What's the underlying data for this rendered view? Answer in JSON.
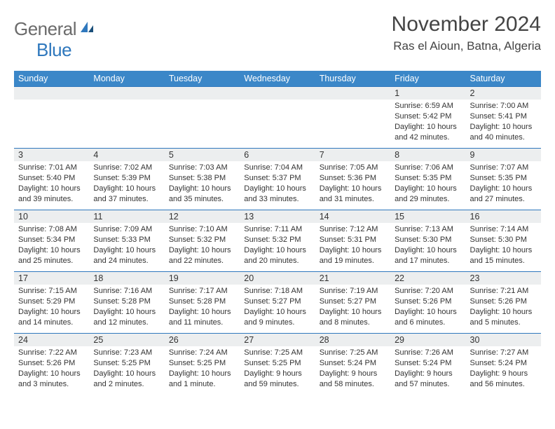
{
  "logo": {
    "text1": "General",
    "text2": "Blue"
  },
  "title": "November 2024",
  "location": "Ras el Aioun, Batna, Algeria",
  "day_headers": [
    "Sunday",
    "Monday",
    "Tuesday",
    "Wednesday",
    "Thursday",
    "Friday",
    "Saturday"
  ],
  "colors": {
    "header_bg": "#3b87c8",
    "border": "#2f78bd",
    "daynum_bg": "#eceeef",
    "logo_gray": "#6b6b6b",
    "logo_blue": "#2f78bd"
  },
  "weeks": [
    [
      {
        "n": "",
        "sunrise": "",
        "sunset": "",
        "daylight": ""
      },
      {
        "n": "",
        "sunrise": "",
        "sunset": "",
        "daylight": ""
      },
      {
        "n": "",
        "sunrise": "",
        "sunset": "",
        "daylight": ""
      },
      {
        "n": "",
        "sunrise": "",
        "sunset": "",
        "daylight": ""
      },
      {
        "n": "",
        "sunrise": "",
        "sunset": "",
        "daylight": ""
      },
      {
        "n": "1",
        "sunrise": "Sunrise: 6:59 AM",
        "sunset": "Sunset: 5:42 PM",
        "daylight": "Daylight: 10 hours and 42 minutes."
      },
      {
        "n": "2",
        "sunrise": "Sunrise: 7:00 AM",
        "sunset": "Sunset: 5:41 PM",
        "daylight": "Daylight: 10 hours and 40 minutes."
      }
    ],
    [
      {
        "n": "3",
        "sunrise": "Sunrise: 7:01 AM",
        "sunset": "Sunset: 5:40 PM",
        "daylight": "Daylight: 10 hours and 39 minutes."
      },
      {
        "n": "4",
        "sunrise": "Sunrise: 7:02 AM",
        "sunset": "Sunset: 5:39 PM",
        "daylight": "Daylight: 10 hours and 37 minutes."
      },
      {
        "n": "5",
        "sunrise": "Sunrise: 7:03 AM",
        "sunset": "Sunset: 5:38 PM",
        "daylight": "Daylight: 10 hours and 35 minutes."
      },
      {
        "n": "6",
        "sunrise": "Sunrise: 7:04 AM",
        "sunset": "Sunset: 5:37 PM",
        "daylight": "Daylight: 10 hours and 33 minutes."
      },
      {
        "n": "7",
        "sunrise": "Sunrise: 7:05 AM",
        "sunset": "Sunset: 5:36 PM",
        "daylight": "Daylight: 10 hours and 31 minutes."
      },
      {
        "n": "8",
        "sunrise": "Sunrise: 7:06 AM",
        "sunset": "Sunset: 5:35 PM",
        "daylight": "Daylight: 10 hours and 29 minutes."
      },
      {
        "n": "9",
        "sunrise": "Sunrise: 7:07 AM",
        "sunset": "Sunset: 5:35 PM",
        "daylight": "Daylight: 10 hours and 27 minutes."
      }
    ],
    [
      {
        "n": "10",
        "sunrise": "Sunrise: 7:08 AM",
        "sunset": "Sunset: 5:34 PM",
        "daylight": "Daylight: 10 hours and 25 minutes."
      },
      {
        "n": "11",
        "sunrise": "Sunrise: 7:09 AM",
        "sunset": "Sunset: 5:33 PM",
        "daylight": "Daylight: 10 hours and 24 minutes."
      },
      {
        "n": "12",
        "sunrise": "Sunrise: 7:10 AM",
        "sunset": "Sunset: 5:32 PM",
        "daylight": "Daylight: 10 hours and 22 minutes."
      },
      {
        "n": "13",
        "sunrise": "Sunrise: 7:11 AM",
        "sunset": "Sunset: 5:32 PM",
        "daylight": "Daylight: 10 hours and 20 minutes."
      },
      {
        "n": "14",
        "sunrise": "Sunrise: 7:12 AM",
        "sunset": "Sunset: 5:31 PM",
        "daylight": "Daylight: 10 hours and 19 minutes."
      },
      {
        "n": "15",
        "sunrise": "Sunrise: 7:13 AM",
        "sunset": "Sunset: 5:30 PM",
        "daylight": "Daylight: 10 hours and 17 minutes."
      },
      {
        "n": "16",
        "sunrise": "Sunrise: 7:14 AM",
        "sunset": "Sunset: 5:30 PM",
        "daylight": "Daylight: 10 hours and 15 minutes."
      }
    ],
    [
      {
        "n": "17",
        "sunrise": "Sunrise: 7:15 AM",
        "sunset": "Sunset: 5:29 PM",
        "daylight": "Daylight: 10 hours and 14 minutes."
      },
      {
        "n": "18",
        "sunrise": "Sunrise: 7:16 AM",
        "sunset": "Sunset: 5:28 PM",
        "daylight": "Daylight: 10 hours and 12 minutes."
      },
      {
        "n": "19",
        "sunrise": "Sunrise: 7:17 AM",
        "sunset": "Sunset: 5:28 PM",
        "daylight": "Daylight: 10 hours and 11 minutes."
      },
      {
        "n": "20",
        "sunrise": "Sunrise: 7:18 AM",
        "sunset": "Sunset: 5:27 PM",
        "daylight": "Daylight: 10 hours and 9 minutes."
      },
      {
        "n": "21",
        "sunrise": "Sunrise: 7:19 AM",
        "sunset": "Sunset: 5:27 PM",
        "daylight": "Daylight: 10 hours and 8 minutes."
      },
      {
        "n": "22",
        "sunrise": "Sunrise: 7:20 AM",
        "sunset": "Sunset: 5:26 PM",
        "daylight": "Daylight: 10 hours and 6 minutes."
      },
      {
        "n": "23",
        "sunrise": "Sunrise: 7:21 AM",
        "sunset": "Sunset: 5:26 PM",
        "daylight": "Daylight: 10 hours and 5 minutes."
      }
    ],
    [
      {
        "n": "24",
        "sunrise": "Sunrise: 7:22 AM",
        "sunset": "Sunset: 5:26 PM",
        "daylight": "Daylight: 10 hours and 3 minutes."
      },
      {
        "n": "25",
        "sunrise": "Sunrise: 7:23 AM",
        "sunset": "Sunset: 5:25 PM",
        "daylight": "Daylight: 10 hours and 2 minutes."
      },
      {
        "n": "26",
        "sunrise": "Sunrise: 7:24 AM",
        "sunset": "Sunset: 5:25 PM",
        "daylight": "Daylight: 10 hours and 1 minute."
      },
      {
        "n": "27",
        "sunrise": "Sunrise: 7:25 AM",
        "sunset": "Sunset: 5:25 PM",
        "daylight": "Daylight: 9 hours and 59 minutes."
      },
      {
        "n": "28",
        "sunrise": "Sunrise: 7:25 AM",
        "sunset": "Sunset: 5:24 PM",
        "daylight": "Daylight: 9 hours and 58 minutes."
      },
      {
        "n": "29",
        "sunrise": "Sunrise: 7:26 AM",
        "sunset": "Sunset: 5:24 PM",
        "daylight": "Daylight: 9 hours and 57 minutes."
      },
      {
        "n": "30",
        "sunrise": "Sunrise: 7:27 AM",
        "sunset": "Sunset: 5:24 PM",
        "daylight": "Daylight: 9 hours and 56 minutes."
      }
    ]
  ]
}
